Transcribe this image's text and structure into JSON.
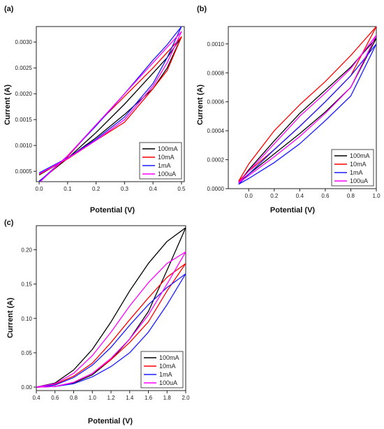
{
  "figure": {
    "colors": {
      "100mA": "#000000",
      "10mA": "#ff0000",
      "1mA": "#1a1aff",
      "100uA": "#ff00ff"
    }
  },
  "chart_data": [
    {
      "panel_label": "(a)",
      "type": "line",
      "xlabel": "Potential (V)",
      "ylabel": "Current (A)",
      "xlim": [
        -0.01,
        0.51
      ],
      "ylim": [
        0.0003,
        0.0033
      ],
      "xticks": [
        "0.0",
        "0.1",
        "0.2",
        "0.3",
        "0.4",
        "0.5"
      ],
      "yticks": [
        "0.0005",
        "0.0010",
        "0.0015",
        "0.0020",
        "0.0025",
        "0.0030"
      ],
      "xtick_values": [
        0.0,
        0.1,
        0.2,
        0.3,
        0.4,
        0.5
      ],
      "ytick_values": [
        0.0005,
        0.001,
        0.0015,
        0.002,
        0.0025,
        0.003
      ],
      "legend_position": "bottom-right",
      "grid": false,
      "series": [
        {
          "name": "100mA",
          "color": "#000000",
          "x": [
            0.0,
            0.1,
            0.2,
            0.3,
            0.4,
            0.45,
            0.5,
            0.45,
            0.4,
            0.3,
            0.2,
            0.1,
            0.0
          ],
          "y": [
            0.00031,
            0.00075,
            0.00125,
            0.0018,
            0.0024,
            0.0027,
            0.0031,
            0.0025,
            0.0021,
            0.0016,
            0.00115,
            0.00075,
            0.00043
          ]
        },
        {
          "name": "10mA",
          "color": "#ff0000",
          "x": [
            0.0,
            0.1,
            0.2,
            0.3,
            0.4,
            0.45,
            0.5,
            0.45,
            0.4,
            0.3,
            0.2,
            0.1,
            0.0
          ],
          "y": [
            0.00029,
            0.00078,
            0.0014,
            0.00195,
            0.0025,
            0.0028,
            0.0031,
            0.00245,
            0.0021,
            0.00145,
            0.0011,
            0.00074,
            0.00044
          ]
        },
        {
          "name": "1mA",
          "color": "#1a1aff",
          "x": [
            0.0,
            0.1,
            0.2,
            0.3,
            0.4,
            0.45,
            0.5,
            0.45,
            0.4,
            0.3,
            0.2,
            0.1,
            0.0
          ],
          "y": [
            0.0003,
            0.0008,
            0.00138,
            0.002,
            0.00265,
            0.00295,
            0.0033,
            0.0027,
            0.0022,
            0.00155,
            0.00112,
            0.00076,
            0.00047
          ]
        },
        {
          "name": "100uA",
          "color": "#ff00ff",
          "x": [
            0.0,
            0.1,
            0.2,
            0.3,
            0.4,
            0.45,
            0.5,
            0.45,
            0.4,
            0.3,
            0.2,
            0.1,
            0.0
          ],
          "y": [
            0.00028,
            0.0008,
            0.0014,
            0.002,
            0.0026,
            0.0029,
            0.0032,
            0.0026,
            0.00215,
            0.0015,
            0.0011,
            0.00075,
            0.00045
          ]
        }
      ]
    },
    {
      "panel_label": "(b)",
      "type": "line",
      "xlabel": "Potential (V)",
      "ylabel": "Current (A)",
      "xlim": [
        -0.16,
        1.0
      ],
      "ylim": [
        0.0,
        0.00112
      ],
      "xticks": [
        "0.0",
        "0.2",
        "0.4",
        "0.6",
        "0.8",
        "1.0"
      ],
      "yticks": [
        "0.0000",
        "0.0002",
        "0.0004",
        "0.0006",
        "0.0008",
        "0.0010"
      ],
      "xtick_values": [
        0.0,
        0.2,
        0.4,
        0.6,
        0.8,
        1.0
      ],
      "ytick_values": [
        0.0,
        0.0002,
        0.0004,
        0.0006,
        0.0008,
        0.001
      ],
      "legend_position": "bottom-right",
      "grid": false,
      "series": [
        {
          "name": "100mA",
          "color": "#000000",
          "x": [
            -0.08,
            0.0,
            0.2,
            0.4,
            0.6,
            0.8,
            1.0,
            0.8,
            0.6,
            0.4,
            0.2,
            0.0,
            -0.08
          ],
          "y": [
            4e-05,
            0.00013,
            0.00033,
            0.00052,
            0.00068,
            0.00084,
            0.00104,
            0.0007,
            0.00053,
            0.00038,
            0.00024,
            0.0001,
            4e-05
          ]
        },
        {
          "name": "10mA",
          "color": "#ff0000",
          "x": [
            -0.08,
            0.0,
            0.2,
            0.4,
            0.6,
            0.8,
            1.0,
            0.8,
            0.6,
            0.4,
            0.2,
            0.0,
            -0.08
          ],
          "y": [
            5e-05,
            0.00017,
            0.0004,
            0.00058,
            0.00074,
            0.00092,
            0.00112,
            0.00078,
            0.0006,
            0.00043,
            0.00027,
            0.00012,
            5e-05
          ]
        },
        {
          "name": "1mA",
          "color": "#1a1aff",
          "x": [
            -0.08,
            0.0,
            0.2,
            0.4,
            0.6,
            0.8,
            1.0,
            0.8,
            0.6,
            0.4,
            0.2,
            0.0,
            -0.08
          ],
          "y": [
            3e-05,
            0.0001,
            0.00027,
            0.00043,
            0.0006,
            0.00078,
            0.001,
            0.00064,
            0.00047,
            0.00031,
            0.00018,
            7e-05,
            3e-05
          ]
        },
        {
          "name": "100uA",
          "color": "#ff00ff",
          "x": [
            -0.08,
            0.0,
            0.2,
            0.4,
            0.6,
            0.8,
            1.0,
            0.8,
            0.6,
            0.4,
            0.2,
            0.0,
            -0.08
          ],
          "y": [
            4e-05,
            0.00012,
            0.00031,
            0.0005,
            0.00066,
            0.00083,
            0.00106,
            0.0007,
            0.00052,
            0.00036,
            0.00022,
            9e-05,
            4e-05
          ]
        }
      ]
    },
    {
      "panel_label": "(c)",
      "type": "line",
      "xlabel": "Potential (V)",
      "ylabel": "Current (A)",
      "xlim": [
        0.4,
        2.0
      ],
      "ylim": [
        -0.005,
        0.235
      ],
      "xticks": [
        "0.4",
        "0.6",
        "0.8",
        "1.0",
        "1.2",
        "1.4",
        "1.6",
        "1.8",
        "2.0"
      ],
      "yticks": [
        "0.00",
        "0.05",
        "0.10",
        "0.15",
        "0.20"
      ],
      "xtick_values": [
        0.4,
        0.6,
        0.8,
        1.0,
        1.2,
        1.4,
        1.6,
        1.8,
        2.0
      ],
      "ytick_values": [
        0.0,
        0.05,
        0.1,
        0.15,
        0.2
      ],
      "legend_position": "bottom-right",
      "grid": false,
      "series": [
        {
          "name": "100mA",
          "color": "#000000",
          "x": [
            0.4,
            0.6,
            0.8,
            1.0,
            1.2,
            1.4,
            1.6,
            1.8,
            2.0,
            1.8,
            1.6,
            1.4,
            1.2,
            1.0,
            0.8,
            0.6,
            0.4
          ],
          "y": [
            0.0,
            0.006,
            0.025,
            0.055,
            0.095,
            0.14,
            0.18,
            0.212,
            0.232,
            0.17,
            0.11,
            0.07,
            0.04,
            0.018,
            0.006,
            0.001,
            0.0
          ]
        },
        {
          "name": "10mA",
          "color": "#ff0000",
          "x": [
            0.4,
            0.6,
            0.8,
            1.0,
            1.2,
            1.4,
            1.6,
            1.8,
            2.0,
            1.8,
            1.6,
            1.4,
            1.2,
            1.0,
            0.8,
            0.6,
            0.4
          ],
          "y": [
            0.0,
            0.004,
            0.016,
            0.035,
            0.065,
            0.098,
            0.13,
            0.16,
            0.18,
            0.14,
            0.095,
            0.065,
            0.04,
            0.02,
            0.007,
            0.001,
            0.0
          ]
        },
        {
          "name": "1mA",
          "color": "#1a1aff",
          "x": [
            0.4,
            0.6,
            0.8,
            1.0,
            1.2,
            1.4,
            1.6,
            1.8,
            2.0,
            1.8,
            1.6,
            1.4,
            1.2,
            1.0,
            0.8,
            0.6,
            0.4
          ],
          "y": [
            0.0,
            0.003,
            0.014,
            0.032,
            0.058,
            0.09,
            0.12,
            0.145,
            0.165,
            0.12,
            0.08,
            0.05,
            0.03,
            0.015,
            0.005,
            0.001,
            0.0
          ]
        },
        {
          "name": "100uA",
          "color": "#ff00ff",
          "x": [
            0.4,
            0.6,
            0.8,
            1.0,
            1.2,
            1.4,
            1.6,
            1.8,
            2.0,
            1.8,
            1.6,
            1.4,
            1.2,
            1.0,
            0.8,
            0.6,
            0.4
          ],
          "y": [
            0.0,
            0.005,
            0.02,
            0.046,
            0.08,
            0.118,
            0.152,
            0.18,
            0.197,
            0.15,
            0.105,
            0.07,
            0.042,
            0.02,
            0.007,
            0.001,
            0.0
          ]
        }
      ]
    }
  ]
}
